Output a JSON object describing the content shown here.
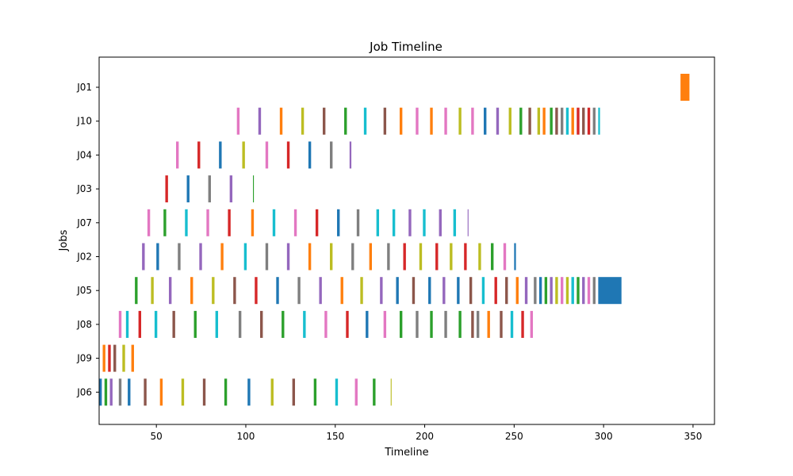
{
  "chart_data": {
    "type": "gantt",
    "title": "Job Timeline",
    "xlabel": "Timeline",
    "ylabel": "Jobs",
    "xlim": [
      18,
      362
    ],
    "xticks": [
      50,
      100,
      150,
      200,
      250,
      300,
      350
    ],
    "jobs": [
      "J01",
      "J10",
      "J04",
      "J03",
      "J07",
      "J02",
      "J05",
      "J08",
      "J09",
      "J06"
    ],
    "palette": [
      "#1f77b4",
      "#ff7f0e",
      "#2ca02c",
      "#d62728",
      "#9467bd",
      "#8c564b",
      "#e377c2",
      "#7f7f7f",
      "#bcbd22",
      "#17becf"
    ],
    "bars": [
      {
        "job": "J01",
        "start": 343,
        "end": 348,
        "color": "#ff7f0e"
      },
      {
        "job": "J10",
        "start": 95,
        "end": 96.5,
        "color": "#e377c2"
      },
      {
        "job": "J10",
        "start": 107,
        "end": 108.5,
        "color": "#9467bd"
      },
      {
        "job": "J10",
        "start": 119,
        "end": 120.5,
        "color": "#ff7f0e"
      },
      {
        "job": "J10",
        "start": 131,
        "end": 132.5,
        "color": "#bcbd22"
      },
      {
        "job": "J10",
        "start": 143,
        "end": 144.5,
        "color": "#8c564b"
      },
      {
        "job": "J10",
        "start": 155,
        "end": 156.5,
        "color": "#2ca02c"
      },
      {
        "job": "J10",
        "start": 166,
        "end": 167.5,
        "color": "#17becf"
      },
      {
        "job": "J10",
        "start": 177,
        "end": 178.5,
        "color": "#8c564b"
      },
      {
        "job": "J10",
        "start": 186,
        "end": 187.5,
        "color": "#ff7f0e"
      },
      {
        "job": "J10",
        "start": 195,
        "end": 196.5,
        "color": "#e377c2"
      },
      {
        "job": "J10",
        "start": 203,
        "end": 204.5,
        "color": "#ff7f0e"
      },
      {
        "job": "J10",
        "start": 211,
        "end": 212.5,
        "color": "#e377c2"
      },
      {
        "job": "J10",
        "start": 219,
        "end": 220.5,
        "color": "#bcbd22"
      },
      {
        "job": "J10",
        "start": 226,
        "end": 227.5,
        "color": "#e377c2"
      },
      {
        "job": "J10",
        "start": 233,
        "end": 234.5,
        "color": "#1f77b4"
      },
      {
        "job": "J10",
        "start": 240,
        "end": 241.5,
        "color": "#9467bd"
      },
      {
        "job": "J10",
        "start": 247,
        "end": 248.5,
        "color": "#bcbd22"
      },
      {
        "job": "J10",
        "start": 253,
        "end": 254.5,
        "color": "#2ca02c"
      },
      {
        "job": "J10",
        "start": 258,
        "end": 259.5,
        "color": "#8c564b"
      },
      {
        "job": "J10",
        "start": 263,
        "end": 264.5,
        "color": "#bcbd22"
      },
      {
        "job": "J10",
        "start": 266,
        "end": 267.5,
        "color": "#ff7f0e"
      },
      {
        "job": "J10",
        "start": 270,
        "end": 271.5,
        "color": "#2ca02c"
      },
      {
        "job": "J10",
        "start": 273,
        "end": 274.5,
        "color": "#8c564b"
      },
      {
        "job": "J10",
        "start": 276,
        "end": 277.5,
        "color": "#7f7f7f"
      },
      {
        "job": "J10",
        "start": 279,
        "end": 280.5,
        "color": "#17becf"
      },
      {
        "job": "J10",
        "start": 282,
        "end": 283.5,
        "color": "#ff7f0e"
      },
      {
        "job": "J10",
        "start": 285,
        "end": 286.5,
        "color": "#d62728"
      },
      {
        "job": "J10",
        "start": 288,
        "end": 289.5,
        "color": "#8c564b"
      },
      {
        "job": "J10",
        "start": 291,
        "end": 292.5,
        "color": "#d62728"
      },
      {
        "job": "J10",
        "start": 294,
        "end": 295.5,
        "color": "#7f7f7f"
      },
      {
        "job": "J10",
        "start": 297,
        "end": 298,
        "color": "#17becf"
      },
      {
        "job": "J04",
        "start": 61,
        "end": 62.5,
        "color": "#e377c2"
      },
      {
        "job": "J04",
        "start": 73,
        "end": 74.5,
        "color": "#d62728"
      },
      {
        "job": "J04",
        "start": 85,
        "end": 86.5,
        "color": "#1f77b4"
      },
      {
        "job": "J04",
        "start": 98,
        "end": 99.5,
        "color": "#bcbd22"
      },
      {
        "job": "J04",
        "start": 111,
        "end": 112.5,
        "color": "#e377c2"
      },
      {
        "job": "J04",
        "start": 123,
        "end": 124.5,
        "color": "#d62728"
      },
      {
        "job": "J04",
        "start": 135,
        "end": 136.5,
        "color": "#1f77b4"
      },
      {
        "job": "J04",
        "start": 147,
        "end": 148.5,
        "color": "#7f7f7f"
      },
      {
        "job": "J04",
        "start": 158,
        "end": 159,
        "color": "#9467bd"
      },
      {
        "job": "J03",
        "start": 55,
        "end": 56.5,
        "color": "#d62728"
      },
      {
        "job": "J03",
        "start": 67,
        "end": 68.5,
        "color": "#1f77b4"
      },
      {
        "job": "J03",
        "start": 79,
        "end": 80.5,
        "color": "#7f7f7f"
      },
      {
        "job": "J03",
        "start": 91,
        "end": 92.5,
        "color": "#9467bd"
      },
      {
        "job": "J03",
        "start": 104,
        "end": 104.5,
        "color": "#2ca02c"
      },
      {
        "job": "J07",
        "start": 45,
        "end": 46.5,
        "color": "#e377c2"
      },
      {
        "job": "J07",
        "start": 54,
        "end": 55.5,
        "color": "#2ca02c"
      },
      {
        "job": "J07",
        "start": 66,
        "end": 67.5,
        "color": "#17becf"
      },
      {
        "job": "J07",
        "start": 78,
        "end": 79.5,
        "color": "#e377c2"
      },
      {
        "job": "J07",
        "start": 90,
        "end": 91.5,
        "color": "#d62728"
      },
      {
        "job": "J07",
        "start": 103,
        "end": 104.5,
        "color": "#ff7f0e"
      },
      {
        "job": "J07",
        "start": 115,
        "end": 116.5,
        "color": "#17becf"
      },
      {
        "job": "J07",
        "start": 127,
        "end": 128.5,
        "color": "#e377c2"
      },
      {
        "job": "J07",
        "start": 139,
        "end": 140.5,
        "color": "#d62728"
      },
      {
        "job": "J07",
        "start": 151,
        "end": 152.5,
        "color": "#1f77b4"
      },
      {
        "job": "J07",
        "start": 162,
        "end": 163.5,
        "color": "#7f7f7f"
      },
      {
        "job": "J07",
        "start": 173,
        "end": 174.5,
        "color": "#17becf"
      },
      {
        "job": "J07",
        "start": 182,
        "end": 183.5,
        "color": "#17becf"
      },
      {
        "job": "J07",
        "start": 191,
        "end": 192.5,
        "color": "#9467bd"
      },
      {
        "job": "J07",
        "start": 199,
        "end": 200.5,
        "color": "#17becf"
      },
      {
        "job": "J07",
        "start": 208,
        "end": 209.5,
        "color": "#9467bd"
      },
      {
        "job": "J07",
        "start": 216,
        "end": 217.5,
        "color": "#17becf"
      },
      {
        "job": "J07",
        "start": 224,
        "end": 224.5,
        "color": "#9467bd"
      },
      {
        "job": "J02",
        "start": 42,
        "end": 43.5,
        "color": "#9467bd"
      },
      {
        "job": "J02",
        "start": 50,
        "end": 51.5,
        "color": "#1f77b4"
      },
      {
        "job": "J02",
        "start": 62,
        "end": 63.5,
        "color": "#7f7f7f"
      },
      {
        "job": "J02",
        "start": 74,
        "end": 75.5,
        "color": "#9467bd"
      },
      {
        "job": "J02",
        "start": 86,
        "end": 87.5,
        "color": "#ff7f0e"
      },
      {
        "job": "J02",
        "start": 99,
        "end": 100.5,
        "color": "#17becf"
      },
      {
        "job": "J02",
        "start": 111,
        "end": 112.5,
        "color": "#7f7f7f"
      },
      {
        "job": "J02",
        "start": 123,
        "end": 124.5,
        "color": "#9467bd"
      },
      {
        "job": "J02",
        "start": 135,
        "end": 136.5,
        "color": "#ff7f0e"
      },
      {
        "job": "J02",
        "start": 147,
        "end": 148.5,
        "color": "#bcbd22"
      },
      {
        "job": "J02",
        "start": 159,
        "end": 160.5,
        "color": "#7f7f7f"
      },
      {
        "job": "J02",
        "start": 169,
        "end": 170.5,
        "color": "#ff7f0e"
      },
      {
        "job": "J02",
        "start": 179,
        "end": 180.5,
        "color": "#7f7f7f"
      },
      {
        "job": "J02",
        "start": 188,
        "end": 189.5,
        "color": "#d62728"
      },
      {
        "job": "J02",
        "start": 197,
        "end": 198.5,
        "color": "#bcbd22"
      },
      {
        "job": "J02",
        "start": 206,
        "end": 207.5,
        "color": "#d62728"
      },
      {
        "job": "J02",
        "start": 214,
        "end": 215.5,
        "color": "#bcbd22"
      },
      {
        "job": "J02",
        "start": 222,
        "end": 223.5,
        "color": "#d62728"
      },
      {
        "job": "J02",
        "start": 230,
        "end": 231.5,
        "color": "#bcbd22"
      },
      {
        "job": "J02",
        "start": 237,
        "end": 238.5,
        "color": "#2ca02c"
      },
      {
        "job": "J02",
        "start": 244,
        "end": 245.5,
        "color": "#e377c2"
      },
      {
        "job": "J02",
        "start": 250,
        "end": 251,
        "color": "#1f77b4"
      },
      {
        "job": "J05",
        "start": 38,
        "end": 39.5,
        "color": "#2ca02c"
      },
      {
        "job": "J05",
        "start": 47,
        "end": 48.5,
        "color": "#bcbd22"
      },
      {
        "job": "J05",
        "start": 57,
        "end": 58.5,
        "color": "#9467bd"
      },
      {
        "job": "J05",
        "start": 69,
        "end": 70.5,
        "color": "#ff7f0e"
      },
      {
        "job": "J05",
        "start": 81,
        "end": 82.5,
        "color": "#bcbd22"
      },
      {
        "job": "J05",
        "start": 93,
        "end": 94.5,
        "color": "#8c564b"
      },
      {
        "job": "J05",
        "start": 105,
        "end": 106.5,
        "color": "#d62728"
      },
      {
        "job": "J05",
        "start": 117,
        "end": 118.5,
        "color": "#1f77b4"
      },
      {
        "job": "J05",
        "start": 129,
        "end": 130.5,
        "color": "#7f7f7f"
      },
      {
        "job": "J05",
        "start": 141,
        "end": 142.5,
        "color": "#9467bd"
      },
      {
        "job": "J05",
        "start": 153,
        "end": 154.5,
        "color": "#ff7f0e"
      },
      {
        "job": "J05",
        "start": 164,
        "end": 165.5,
        "color": "#bcbd22"
      },
      {
        "job": "J05",
        "start": 175,
        "end": 176.5,
        "color": "#9467bd"
      },
      {
        "job": "J05",
        "start": 184,
        "end": 185.5,
        "color": "#1f77b4"
      },
      {
        "job": "J05",
        "start": 193,
        "end": 194.5,
        "color": "#8c564b"
      },
      {
        "job": "J05",
        "start": 202,
        "end": 203.5,
        "color": "#1f77b4"
      },
      {
        "job": "J05",
        "start": 210,
        "end": 211.5,
        "color": "#9467bd"
      },
      {
        "job": "J05",
        "start": 218,
        "end": 219.5,
        "color": "#1f77b4"
      },
      {
        "job": "J05",
        "start": 225,
        "end": 226.5,
        "color": "#8c564b"
      },
      {
        "job": "J05",
        "start": 232,
        "end": 233.5,
        "color": "#17becf"
      },
      {
        "job": "J05",
        "start": 239,
        "end": 240.5,
        "color": "#d62728"
      },
      {
        "job": "J05",
        "start": 245,
        "end": 246.5,
        "color": "#8c564b"
      },
      {
        "job": "J05",
        "start": 251,
        "end": 252.5,
        "color": "#ff7f0e"
      },
      {
        "job": "J05",
        "start": 256,
        "end": 257.5,
        "color": "#9467bd"
      },
      {
        "job": "J05",
        "start": 261,
        "end": 262.5,
        "color": "#7f7f7f"
      },
      {
        "job": "J05",
        "start": 264,
        "end": 265.5,
        "color": "#1f77b4"
      },
      {
        "job": "J05",
        "start": 267,
        "end": 268.5,
        "color": "#2ca02c"
      },
      {
        "job": "J05",
        "start": 270,
        "end": 271.5,
        "color": "#9467bd"
      },
      {
        "job": "J05",
        "start": 273,
        "end": 274.5,
        "color": "#bcbd22"
      },
      {
        "job": "J05",
        "start": 276,
        "end": 277.5,
        "color": "#e377c2"
      },
      {
        "job": "J05",
        "start": 279,
        "end": 280.5,
        "color": "#bcbd22"
      },
      {
        "job": "J05",
        "start": 282,
        "end": 283.5,
        "color": "#17becf"
      },
      {
        "job": "J05",
        "start": 285,
        "end": 286.5,
        "color": "#2ca02c"
      },
      {
        "job": "J05",
        "start": 288,
        "end": 289.5,
        "color": "#9467bd"
      },
      {
        "job": "J05",
        "start": 291,
        "end": 292.5,
        "color": "#e377c2"
      },
      {
        "job": "J05",
        "start": 294,
        "end": 295.5,
        "color": "#7f7f7f"
      },
      {
        "job": "J05",
        "start": 297,
        "end": 310,
        "color": "#1f77b4"
      },
      {
        "job": "J08",
        "start": 29,
        "end": 30.5,
        "color": "#e377c2"
      },
      {
        "job": "J08",
        "start": 33,
        "end": 34.5,
        "color": "#17becf"
      },
      {
        "job": "J08",
        "start": 40,
        "end": 41.5,
        "color": "#d62728"
      },
      {
        "job": "J08",
        "start": 49,
        "end": 50.5,
        "color": "#17becf"
      },
      {
        "job": "J08",
        "start": 59,
        "end": 60.5,
        "color": "#8c564b"
      },
      {
        "job": "J08",
        "start": 71,
        "end": 72.5,
        "color": "#2ca02c"
      },
      {
        "job": "J08",
        "start": 83,
        "end": 84.5,
        "color": "#17becf"
      },
      {
        "job": "J08",
        "start": 96,
        "end": 97.5,
        "color": "#7f7f7f"
      },
      {
        "job": "J08",
        "start": 108,
        "end": 109.5,
        "color": "#8c564b"
      },
      {
        "job": "J08",
        "start": 120,
        "end": 121.5,
        "color": "#2ca02c"
      },
      {
        "job": "J08",
        "start": 132,
        "end": 133.5,
        "color": "#17becf"
      },
      {
        "job": "J08",
        "start": 144,
        "end": 145.5,
        "color": "#e377c2"
      },
      {
        "job": "J08",
        "start": 156,
        "end": 157.5,
        "color": "#d62728"
      },
      {
        "job": "J08",
        "start": 167,
        "end": 168.5,
        "color": "#1f77b4"
      },
      {
        "job": "J08",
        "start": 177,
        "end": 178.5,
        "color": "#e377c2"
      },
      {
        "job": "J08",
        "start": 186,
        "end": 187.5,
        "color": "#2ca02c"
      },
      {
        "job": "J08",
        "start": 195,
        "end": 196.5,
        "color": "#7f7f7f"
      },
      {
        "job": "J08",
        "start": 203,
        "end": 204.5,
        "color": "#2ca02c"
      },
      {
        "job": "J08",
        "start": 211,
        "end": 212.5,
        "color": "#7f7f7f"
      },
      {
        "job": "J08",
        "start": 219,
        "end": 220.5,
        "color": "#2ca02c"
      },
      {
        "job": "J08",
        "start": 226,
        "end": 227.5,
        "color": "#8c564b"
      },
      {
        "job": "J08",
        "start": 229,
        "end": 230.5,
        "color": "#7f7f7f"
      },
      {
        "job": "J08",
        "start": 235,
        "end": 236.5,
        "color": "#ff7f0e"
      },
      {
        "job": "J08",
        "start": 242,
        "end": 243.5,
        "color": "#8c564b"
      },
      {
        "job": "J08",
        "start": 248,
        "end": 249.5,
        "color": "#17becf"
      },
      {
        "job": "J08",
        "start": 254,
        "end": 255.5,
        "color": "#d62728"
      },
      {
        "job": "J08",
        "start": 259,
        "end": 260.5,
        "color": "#e377c2"
      },
      {
        "job": "J09",
        "start": 20,
        "end": 21.5,
        "color": "#ff7f0e"
      },
      {
        "job": "J09",
        "start": 23,
        "end": 24.5,
        "color": "#d62728"
      },
      {
        "job": "J09",
        "start": 26,
        "end": 27.5,
        "color": "#8c564b"
      },
      {
        "job": "J09",
        "start": 31,
        "end": 32.5,
        "color": "#bcbd22"
      },
      {
        "job": "J09",
        "start": 36,
        "end": 37.5,
        "color": "#ff7f0e"
      },
      {
        "job": "J06",
        "start": 18,
        "end": 19.5,
        "color": "#1f77b4"
      },
      {
        "job": "J06",
        "start": 21,
        "end": 22.5,
        "color": "#2ca02c"
      },
      {
        "job": "J06",
        "start": 24,
        "end": 25.5,
        "color": "#9467bd"
      },
      {
        "job": "J06",
        "start": 29,
        "end": 30.5,
        "color": "#7f7f7f"
      },
      {
        "job": "J06",
        "start": 34,
        "end": 35.5,
        "color": "#1f77b4"
      },
      {
        "job": "J06",
        "start": 43,
        "end": 44.5,
        "color": "#8c564b"
      },
      {
        "job": "J06",
        "start": 52,
        "end": 53.5,
        "color": "#ff7f0e"
      },
      {
        "job": "J06",
        "start": 64,
        "end": 65.5,
        "color": "#bcbd22"
      },
      {
        "job": "J06",
        "start": 76,
        "end": 77.5,
        "color": "#8c564b"
      },
      {
        "job": "J06",
        "start": 88,
        "end": 89.5,
        "color": "#2ca02c"
      },
      {
        "job": "J06",
        "start": 101,
        "end": 102.5,
        "color": "#1f77b4"
      },
      {
        "job": "J06",
        "start": 114,
        "end": 115.5,
        "color": "#bcbd22"
      },
      {
        "job": "J06",
        "start": 126,
        "end": 127.5,
        "color": "#8c564b"
      },
      {
        "job": "J06",
        "start": 138,
        "end": 139.5,
        "color": "#2ca02c"
      },
      {
        "job": "J06",
        "start": 150,
        "end": 151.5,
        "color": "#17becf"
      },
      {
        "job": "J06",
        "start": 161,
        "end": 162.5,
        "color": "#e377c2"
      },
      {
        "job": "J06",
        "start": 171,
        "end": 172.5,
        "color": "#2ca02c"
      },
      {
        "job": "J06",
        "start": 181,
        "end": 181.5,
        "color": "#bcbd22"
      }
    ]
  }
}
